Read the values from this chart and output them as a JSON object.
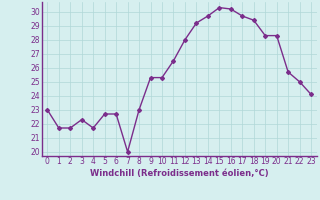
{
  "x": [
    0,
    1,
    2,
    3,
    4,
    5,
    6,
    7,
    8,
    9,
    10,
    11,
    12,
    13,
    14,
    15,
    16,
    17,
    18,
    19,
    20,
    21,
    22,
    23
  ],
  "y": [
    23,
    21.7,
    21.7,
    22.3,
    21.7,
    22.7,
    22.7,
    20.0,
    23.0,
    25.3,
    25.3,
    26.5,
    28.0,
    29.2,
    29.7,
    30.3,
    30.2,
    29.7,
    29.4,
    28.3,
    28.3,
    25.7,
    25.0,
    24.1
  ],
  "line_color": "#7B2D8B",
  "marker": "D",
  "marker_size": 2,
  "bg_color": "#d6efef",
  "grid_color": "#b0d8d8",
  "xlabel": "Windchill (Refroidissement éolien,°C)",
  "xlabel_color": "#7B2D8B",
  "tick_color": "#7B2D8B",
  "spine_color": "#7B2D8B",
  "ylim": [
    19.7,
    30.7
  ],
  "xlim": [
    -0.5,
    23.5
  ],
  "yticks": [
    20,
    21,
    22,
    23,
    24,
    25,
    26,
    27,
    28,
    29,
    30
  ],
  "xticks": [
    0,
    1,
    2,
    3,
    4,
    5,
    6,
    7,
    8,
    9,
    10,
    11,
    12,
    13,
    14,
    15,
    16,
    17,
    18,
    19,
    20,
    21,
    22,
    23
  ],
  "xlabel_fontsize": 6,
  "tick_fontsize": 5.5,
  "linewidth": 1.0
}
